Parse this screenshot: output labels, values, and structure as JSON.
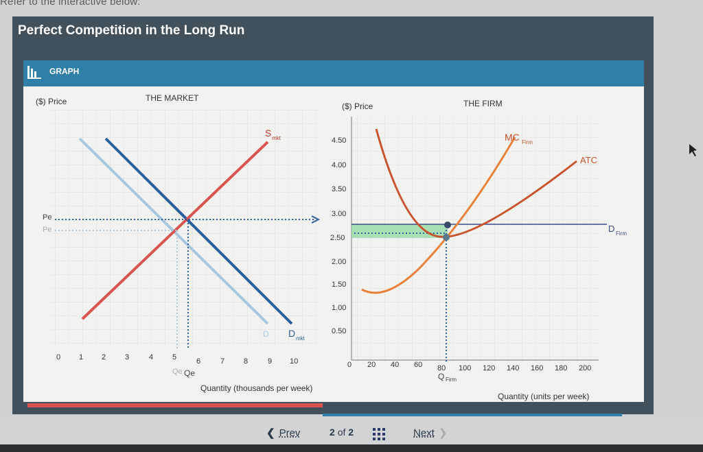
{
  "header": {
    "refer_text": "Refer to the interactive below:",
    "title": "Perfect Competition in the Long Run"
  },
  "tab": {
    "label": "GRAPH",
    "icon": "bar-chart-icon"
  },
  "market": {
    "heading": "THE MARKET",
    "ylabel": "($) Price",
    "xlabel": "Quantity (thousands per week)",
    "xticks": [
      "0",
      "1",
      "2",
      "3",
      "4",
      "5",
      "6",
      "7",
      "8",
      "9",
      "10"
    ],
    "price_labels": [
      "Pe",
      "Pe"
    ],
    "qty_labels": [
      "Qe",
      "Qe"
    ],
    "supply_label": "S",
    "supply_sub": "mkt",
    "demand_label": "D",
    "demand_sub": "mkt",
    "demand_old_label": "D"
  },
  "firm": {
    "heading": "THE FIRM",
    "ylabel": "($) Price",
    "xlabel": "Quantity (units per week)",
    "yticks": [
      "4.50",
      "4.00",
      "3.50",
      "3.00",
      "2.50",
      "2.00",
      "1.50",
      "1.00",
      "0.50"
    ],
    "xticks": [
      "0",
      "20",
      "40",
      "60",
      "80",
      "100",
      "120",
      "140",
      "160",
      "180",
      "200"
    ],
    "mc_label": "MC",
    "mc_sub": "Firm",
    "atc_label": "ATC",
    "d_label": "D",
    "d_sub": "Firm",
    "q_label": "Q",
    "q_sub": "Firm"
  },
  "colors": {
    "supply": "#d9534f",
    "demand": "#2a5f9e",
    "demand_old": "#a9c8e0",
    "mc": "#e8823a",
    "atc": "#c9532f",
    "firm_demand": "#3a4a8a",
    "profit": "#8fd9a0"
  },
  "nav": {
    "prev": "Prev",
    "page": "2",
    "of": "of",
    "total": "2",
    "next": "Next"
  }
}
